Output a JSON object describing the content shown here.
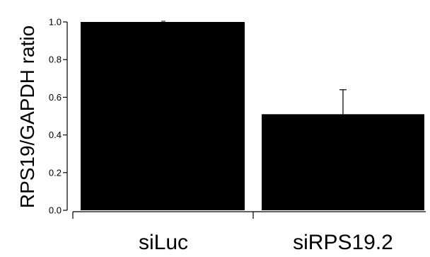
{
  "chart_data": {
    "type": "bar",
    "title": "",
    "xlabel": "",
    "ylabel": "RPS19/GAPDH ratio",
    "categories": [
      "siLuc",
      "siRPS19.2"
    ],
    "values": [
      1.0,
      0.51
    ],
    "error_upper": [
      0.0,
      0.13
    ],
    "ylim": [
      0,
      1.0
    ],
    "yticks": [
      "0.0",
      "0.2",
      "0.4",
      "0.6",
      "0.8",
      "1.0"
    ],
    "grid": false,
    "legend": "none",
    "bar_color": "#000000"
  }
}
